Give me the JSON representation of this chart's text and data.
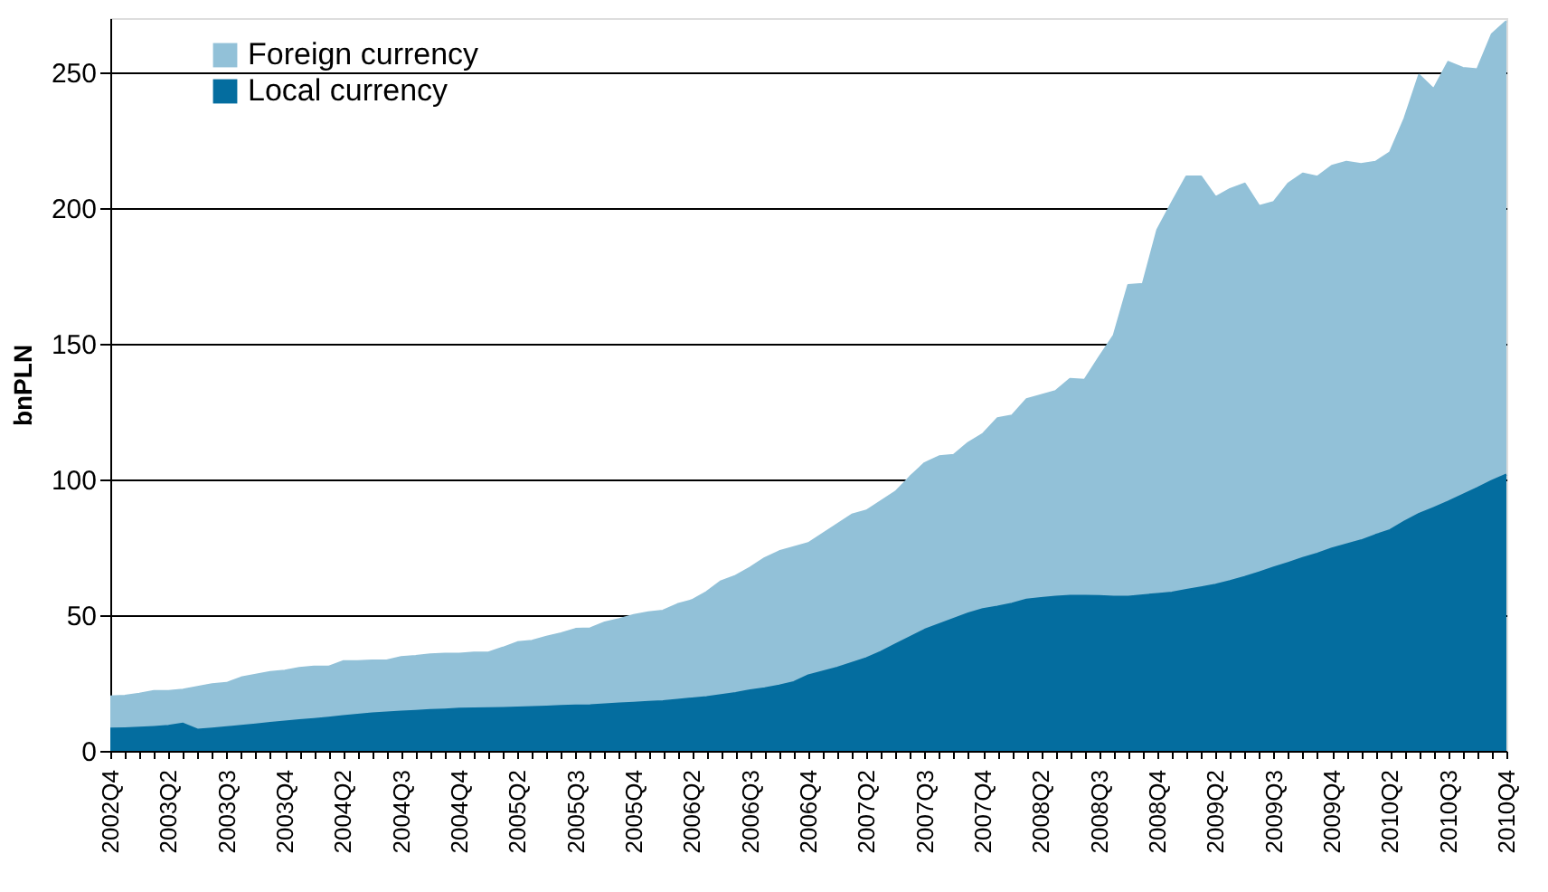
{
  "chart_data": {
    "type": "area",
    "stacked": true,
    "ylabel": "bnPLN",
    "legend": "top left",
    "grid": "y",
    "categories": [
      "2002Q4",
      null,
      null,
      null,
      "2003Q2",
      null,
      null,
      null,
      "2003Q3",
      null,
      null,
      null,
      "2003Q4",
      null,
      null,
      null,
      "2004Q2",
      null,
      null,
      null,
      "2004Q3",
      null,
      null,
      null,
      "2004Q4",
      null,
      null,
      null,
      "2005Q2",
      null,
      null,
      null,
      "2005Q3",
      null,
      null,
      null,
      "2005Q4",
      null,
      null,
      null,
      "2006Q2",
      null,
      null,
      null,
      "2006Q3",
      null,
      null,
      null,
      "2006Q4",
      null,
      null,
      null,
      "2007Q2",
      null,
      null,
      null,
      "2007Q3",
      null,
      null,
      null,
      "2007Q4",
      null,
      null,
      null,
      "2008Q2",
      null,
      null,
      null,
      "2008Q3",
      null,
      null,
      null,
      "2008Q4",
      null,
      null,
      null,
      "2009Q2",
      null,
      null,
      null,
      "2009Q3",
      null,
      null,
      null,
      "2009Q4",
      null,
      null,
      null,
      "2010Q2",
      null,
      null,
      null,
      "2010Q3",
      null,
      null,
      null,
      "2010Q4"
    ],
    "ylim": [
      0,
      270
    ],
    "yticks": [
      0,
      50,
      100,
      150,
      200,
      250
    ],
    "series": [
      {
        "name": "Local currency",
        "color": "#046d9f",
        "values": [
          8.2,
          8.3,
          8.5,
          8.8,
          9.2,
          10,
          7.8,
          8.2,
          8.7,
          9.2,
          9.7,
          10.3,
          10.8,
          11.3,
          11.7,
          12.2,
          12.8,
          13.3,
          13.8,
          14.1,
          14.4,
          14.7,
          15,
          15.2,
          15.5,
          15.6,
          15.7,
          15.8,
          15.9,
          16.1,
          16.3,
          16.5,
          16.7,
          16.8,
          17.1,
          17.4,
          17.7,
          18,
          18.3,
          18.8,
          19.3,
          19.8,
          20.5,
          21.3,
          22.3,
          23,
          24,
          25.3,
          27.8,
          29.2,
          30.6,
          32.4,
          34.1,
          36.5,
          39.2,
          41.9,
          44.6,
          46.6,
          48.6,
          50.6,
          52.2,
          53.1,
          54.2,
          55.7,
          56.3,
          56.8,
          57.1,
          57.1,
          57,
          56.8,
          56.8,
          57.3,
          57.8,
          58.3,
          59.3,
          60.2,
          61.2,
          62.5,
          64,
          65.7,
          67.5,
          69.2,
          71,
          72.6,
          74.5,
          76,
          77.5,
          79.5,
          81.3,
          84.5,
          87.3,
          89.5,
          91.8,
          94.3,
          96.8,
          99.5,
          101.8
        ]
      },
      {
        "name": "Foreign currency",
        "color": "#92c1d8",
        "values": [
          11.8,
          12.0,
          12.5,
          13.2,
          12.8,
          12.5,
          15.7,
          16.3,
          16.3,
          17.8,
          18.3,
          18.7,
          18.7,
          19.2,
          19.3,
          18.8,
          20.2,
          19.7,
          19.5,
          19.2,
          20.1,
          20.2,
          20.5,
          20.6,
          20.3,
          20.6,
          20.5,
          22.2,
          24.1,
          24.4,
          25.7,
          26.8,
          28.2,
          28.3,
          30.2,
          31.1,
          32.3,
          33,
          33.3,
          35.2,
          36.2,
          38.7,
          42,
          43.2,
          45.2,
          48,
          49.5,
          49.7,
          48.7,
          50.8,
          52.9,
          54.6,
          54.4,
          55.5,
          56.3,
          59.1,
          61.4,
          61.9,
          60.4,
          62.9,
          64.5,
          69.4,
          69.3,
          73.8,
          74.7,
          75.7,
          79.9,
          79.6,
          88,
          96.2,
          114.8,
          114.7,
          134.2,
          143.7,
          152.3,
          151.4,
          142.8,
          144.5,
          145,
          135,
          134.7,
          139.8,
          141.7,
          138.9,
          141,
          141,
          138.7,
          137.5,
          139.2,
          148.5,
          161.7,
          154.3,
          162,
          157.3,
          154.3,
          164.5,
          167.1
        ]
      }
    ]
  }
}
